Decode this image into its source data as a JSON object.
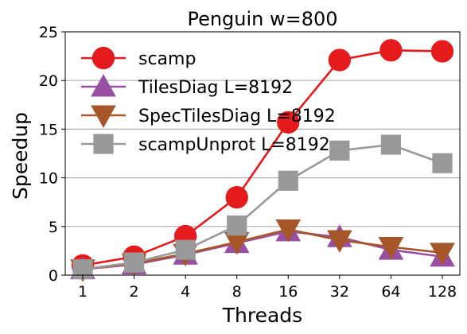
{
  "chart_data": {
    "type": "line",
    "title": "Penguin w=800",
    "xlabel": "Threads",
    "ylabel": "Speedup",
    "categories": [
      "1",
      "2",
      "4",
      "8",
      "16",
      "32",
      "64",
      "128"
    ],
    "ylim": [
      0,
      25
    ],
    "yticks": [
      0,
      5,
      10,
      15,
      20,
      25
    ],
    "grid": "horizontal",
    "legend_position": "top-left",
    "series": [
      {
        "name": "scamp",
        "marker": "circle",
        "color": "#e41a1c",
        "values": [
          1.0,
          1.9,
          4.0,
          8.0,
          15.7,
          22.1,
          23.1,
          23.0
        ]
      },
      {
        "name": "TilesDiag L=8192",
        "marker": "triangle-up",
        "color": "#984ea3",
        "values": [
          0.6,
          1.1,
          2.1,
          3.3,
          4.5,
          3.9,
          2.6,
          1.9
        ]
      },
      {
        "name": "SpecTilesDiag L=8192",
        "marker": "triangle-down",
        "color": "#a65628",
        "values": [
          0.6,
          1.2,
          2.2,
          3.4,
          4.7,
          3.6,
          2.9,
          2.3
        ]
      },
      {
        "name": "scampUnprot L=8192",
        "marker": "square",
        "color": "#999999",
        "values": [
          0.6,
          1.3,
          2.6,
          5.1,
          9.7,
          12.8,
          13.4,
          11.5
        ]
      }
    ]
  }
}
